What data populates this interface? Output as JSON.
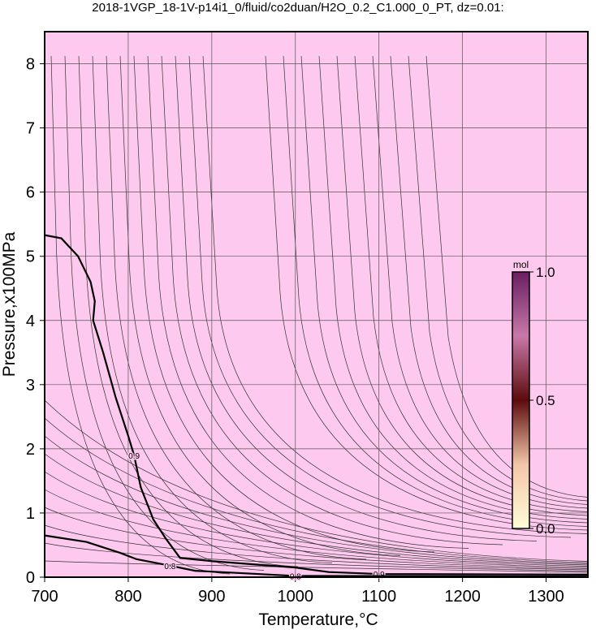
{
  "chart_data": {
    "type": "contour",
    "title": "2018-1VGP_18-1V-p14i1_0/fluid/co2duan/H2O_0.2_C1.000_0_PT, dz=0.01:",
    "x_label": "Temperature,°C",
    "y_label": "Pressure,x100MPa",
    "xlim": [
      700,
      1350
    ],
    "ylim": [
      0,
      8.5
    ],
    "xticks": [
      700,
      800,
      900,
      1000,
      1100,
      1200,
      1300
    ],
    "yticks": [
      0,
      1,
      2,
      3,
      4,
      5,
      6,
      7,
      8
    ],
    "grid": true,
    "background": "#fdc9ee",
    "contours": [
      {
        "name": "0.9",
        "color": "#000000",
        "x": [
          700,
          720,
          740,
          755,
          760,
          758,
          770,
          785,
          800,
          807,
          815,
          830,
          845,
          862,
          900,
          1000,
          1040,
          1100,
          1350
        ],
        "y": [
          5.33,
          5.28,
          5.0,
          4.6,
          4.3,
          4.0,
          3.5,
          2.8,
          2.2,
          1.9,
          1.4,
          0.9,
          0.6,
          0.3,
          0.25,
          0.15,
          0.08,
          0.05,
          0.04
        ]
      },
      {
        "name": "0.8",
        "color": "#000000",
        "x": [
          700,
          750,
          790,
          810,
          850,
          880,
          1000,
          1350
        ],
        "y": [
          0.65,
          0.55,
          0.38,
          0.28,
          0.18,
          0.1,
          0.02,
          0.01
        ]
      }
    ],
    "colorbar": {
      "label": "mol",
      "lim": [
        0,
        1
      ],
      "ticks": [
        {
          "value": 0,
          "label": "0.0"
        },
        0.5,
        {
          "value": 1,
          "label": "1.0"
        }
      ]
    }
  }
}
